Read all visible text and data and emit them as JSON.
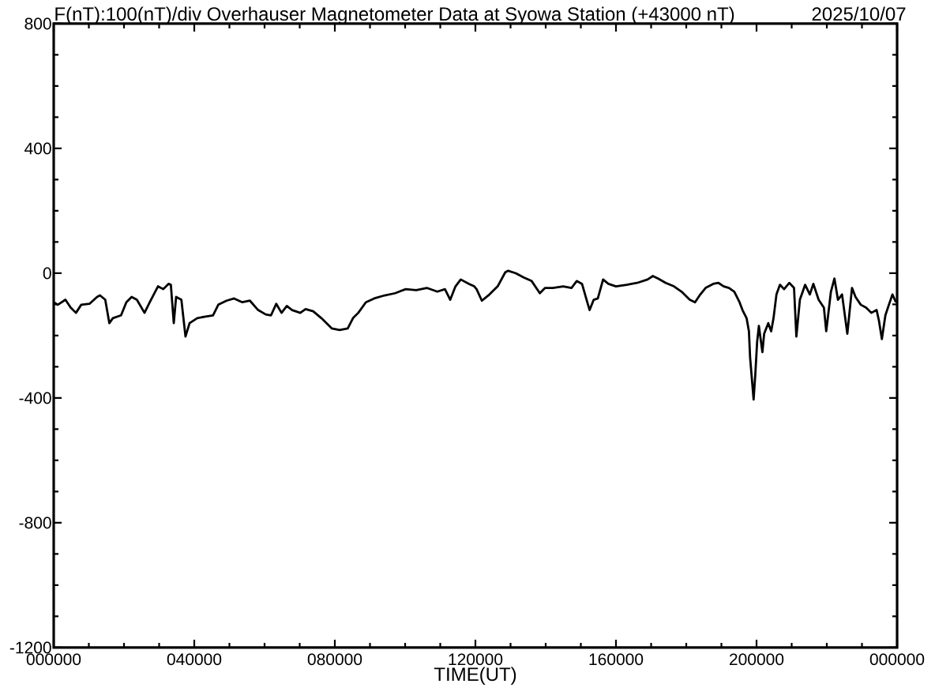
{
  "chart_data": {
    "type": "line",
    "title": "F(nT):100(nT)/div Overhauser Magnetometer Data at Syowa Station (+43000 nT)",
    "subtitle": "2025/10/07",
    "xlabel": "TIME(UT)",
    "color": "#000000",
    "marker": "none",
    "line_style": "solid",
    "xlim": [
      "2025-10-07T00:00",
      "2025-10-08T00:00"
    ],
    "ylim": [
      -1200,
      800
    ],
    "xticks": [
      {
        "value": "2025-10-07T00:00",
        "label": "000000"
      },
      {
        "value": "2025-10-07T01:00",
        "label": null
      },
      {
        "value": "2025-10-07T02:00",
        "label": null
      },
      {
        "value": "2025-10-07T03:00",
        "label": null
      },
      {
        "value": "2025-10-07T04:00",
        "label": "040000"
      },
      {
        "value": "2025-10-07T05:00",
        "label": null
      },
      {
        "value": "2025-10-07T06:00",
        "label": null
      },
      {
        "value": "2025-10-07T07:00",
        "label": null
      },
      {
        "value": "2025-10-07T08:00",
        "label": "080000"
      },
      {
        "value": "2025-10-07T09:00",
        "label": null
      },
      {
        "value": "2025-10-07T10:00",
        "label": null
      },
      {
        "value": "2025-10-07T11:00",
        "label": null
      },
      {
        "value": "2025-10-07T12:00",
        "label": "120000"
      },
      {
        "value": "2025-10-07T13:00",
        "label": null
      },
      {
        "value": "2025-10-07T14:00",
        "label": null
      },
      {
        "value": "2025-10-07T15:00",
        "label": null
      },
      {
        "value": "2025-10-07T16:00",
        "label": "160000"
      },
      {
        "value": "2025-10-07T17:00",
        "label": null
      },
      {
        "value": "2025-10-07T18:00",
        "label": null
      },
      {
        "value": "2025-10-07T19:00",
        "label": null
      },
      {
        "value": "2025-10-07T20:00",
        "label": "200000"
      },
      {
        "value": "2025-10-07T21:00",
        "label": null
      },
      {
        "value": "2025-10-07T22:00",
        "label": null
      },
      {
        "value": "2025-10-07T23:00",
        "label": null
      },
      {
        "value": "2025-10-08T00:00",
        "label": "000000"
      }
    ],
    "yticks": [
      800,
      {
        "value": 700,
        "label": null
      },
      {
        "value": 600,
        "label": null
      },
      {
        "value": 500,
        "label": null
      },
      400,
      {
        "value": 300,
        "label": null
      },
      {
        "value": 200,
        "label": null
      },
      {
        "value": 100,
        "label": null
      },
      0,
      {
        "value": -100,
        "label": null
      },
      {
        "value": -200,
        "label": null
      },
      {
        "value": -300,
        "label": null
      },
      -400,
      {
        "value": -500,
        "label": null
      },
      {
        "value": -600,
        "label": null
      },
      {
        "value": -700,
        "label": null
      },
      -800,
      {
        "value": -900,
        "label": null
      },
      {
        "value": -1000,
        "label": null
      },
      {
        "value": -1100,
        "label": null
      },
      -1200
    ],
    "x": [
      "2025-10-07T00:00",
      "2025-10-07T00:07",
      "2025-10-07T00:20",
      "2025-10-07T00:29",
      "2025-10-07T00:38",
      "2025-10-07T00:47",
      "2025-10-07T01:01",
      "2025-10-07T01:14",
      "2025-10-07T01:19",
      "2025-10-07T01:28",
      "2025-10-07T01:35",
      "2025-10-07T01:41",
      "2025-10-07T01:55",
      "2025-10-07T02:04",
      "2025-10-07T02:13",
      "2025-10-07T02:22",
      "2025-10-07T02:35",
      "2025-10-07T02:44",
      "2025-10-07T02:58",
      "2025-10-07T03:07",
      "2025-10-07T03:16",
      "2025-10-07T03:20",
      "2025-10-07T03:25",
      "2025-10-07T03:29",
      "2025-10-07T03:38",
      "2025-10-07T03:45",
      "2025-10-07T03:52",
      "2025-10-07T04:05",
      "2025-10-07T04:19",
      "2025-10-07T04:32",
      "2025-10-07T04:41",
      "2025-10-07T04:55",
      "2025-10-07T05:08",
      "2025-10-07T05:22",
      "2025-10-07T05:35",
      "2025-10-07T05:49",
      "2025-10-07T06:02",
      "2025-10-07T06:11",
      "2025-10-07T06:20",
      "2025-10-07T06:29",
      "2025-10-07T06:38",
      "2025-10-07T06:47",
      "2025-10-07T07:01",
      "2025-10-07T07:10",
      "2025-10-07T07:23",
      "2025-10-07T07:37",
      "2025-10-07T07:55",
      "2025-10-07T08:08",
      "2025-10-07T08:22",
      "2025-10-07T08:31",
      "2025-10-07T08:40",
      "2025-10-07T08:53",
      "2025-10-07T09:07",
      "2025-10-07T09:25",
      "2025-10-07T09:43",
      "2025-10-07T10:01",
      "2025-10-07T10:19",
      "2025-10-07T10:37",
      "2025-10-07T10:55",
      "2025-10-07T11:08",
      "2025-10-07T11:17",
      "2025-10-07T11:26",
      "2025-10-07T11:35",
      "2025-10-07T11:49",
      "2025-10-07T11:58",
      "2025-10-07T12:02",
      "2025-10-07T12:11",
      "2025-10-07T12:24",
      "2025-10-07T12:38",
      "2025-10-07T12:51",
      "2025-10-07T12:56",
      "2025-10-07T13:09",
      "2025-10-07T13:23",
      "2025-10-07T13:36",
      "2025-10-07T13:50",
      "2025-10-07T13:59",
      "2025-10-07T14:12",
      "2025-10-07T14:30",
      "2025-10-07T14:44",
      "2025-10-07T14:53",
      "2025-10-07T15:02",
      "2025-10-07T15:11",
      "2025-10-07T15:15",
      "2025-10-07T15:22",
      "2025-10-07T15:29",
      "2025-10-07T15:38",
      "2025-10-07T15:47",
      "2025-10-07T16:00",
      "2025-10-07T16:18",
      "2025-10-07T16:36",
      "2025-10-07T16:54",
      "2025-10-07T17:03",
      "2025-10-07T17:12",
      "2025-10-07T17:25",
      "2025-10-07T17:39",
      "2025-10-07T17:52",
      "2025-10-07T18:06",
      "2025-10-07T18:15",
      "2025-10-07T18:24",
      "2025-10-07T18:33",
      "2025-10-07T18:46",
      "2025-10-07T18:55",
      "2025-10-07T19:04",
      "2025-10-07T19:13",
      "2025-10-07T19:22",
      "2025-10-07T19:31",
      "2025-10-07T19:36",
      "2025-10-07T19:43",
      "2025-10-07T19:47",
      "2025-10-07T19:49",
      "2025-10-07T19:52",
      "2025-10-07T19:55",
      "2025-10-07T19:58",
      "2025-10-07T20:01",
      "2025-10-07T20:04",
      "2025-10-07T20:10",
      "2025-10-07T20:13",
      "2025-10-07T20:20",
      "2025-10-07T20:25",
      "2025-10-07T20:29",
      "2025-10-07T20:34",
      "2025-10-07T20:40",
      "2025-10-07T20:47",
      "2025-10-07T20:56",
      "2025-10-07T21:04",
      "2025-10-07T21:08",
      "2025-10-07T21:14",
      "2025-10-07T21:23",
      "2025-10-07T21:31",
      "2025-10-07T21:37",
      "2025-10-07T21:46",
      "2025-10-07T21:55",
      "2025-10-07T21:59",
      "2025-10-07T22:07",
      "2025-10-07T22:13",
      "2025-10-07T22:19",
      "2025-10-07T22:26",
      "2025-10-07T22:35",
      "2025-10-07T22:43",
      "2025-10-07T22:49",
      "2025-10-07T22:58",
      "2025-10-07T23:07",
      "2025-10-07T23:16",
      "2025-10-07T23:25",
      "2025-10-07T23:29",
      "2025-10-07T23:34",
      "2025-10-07T23:40",
      "2025-10-07T23:46",
      "2025-10-07T23:52",
      "2025-10-07T23:58"
    ],
    "values": [
      -93,
      -101,
      -85,
      -110,
      -127,
      -101,
      -98,
      -76,
      -71,
      -85,
      -160,
      -144,
      -135,
      -93,
      -76,
      -85,
      -127,
      -93,
      -42,
      -51,
      -34,
      -37,
      -160,
      -76,
      -85,
      -203,
      -160,
      -144,
      -139,
      -135,
      -101,
      -88,
      -81,
      -93,
      -88,
      -118,
      -132,
      -135,
      -98,
      -127,
      -105,
      -118,
      -127,
      -115,
      -122,
      -144,
      -177,
      -182,
      -177,
      -144,
      -127,
      -93,
      -81,
      -71,
      -64,
      -51,
      -54,
      -47,
      -59,
      -51,
      -85,
      -42,
      -20,
      -34,
      -42,
      -51,
      -88,
      -68,
      -42,
      3,
      8,
      0,
      -14,
      -25,
      -64,
      -47,
      -47,
      -42,
      -47,
      -25,
      -34,
      -93,
      -118,
      -85,
      -81,
      -20,
      -34,
      -42,
      -37,
      -31,
      -20,
      -9,
      -17,
      -31,
      -42,
      -59,
      -85,
      -93,
      -68,
      -47,
      -34,
      -31,
      -42,
      -47,
      -59,
      -93,
      -118,
      -144,
      -186,
      -270,
      -338,
      -405,
      -321,
      -220,
      -169,
      -253,
      -194,
      -160,
      -186,
      -144,
      -68,
      -37,
      -51,
      -31,
      -47,
      -203,
      -85,
      -37,
      -68,
      -34,
      -85,
      -110,
      -186,
      -59,
      -17,
      -85,
      -68,
      -194,
      -47,
      -76,
      -101,
      -110,
      -127,
      -118,
      -152,
      -211,
      -135,
      -101,
      -68,
      -93
    ]
  }
}
